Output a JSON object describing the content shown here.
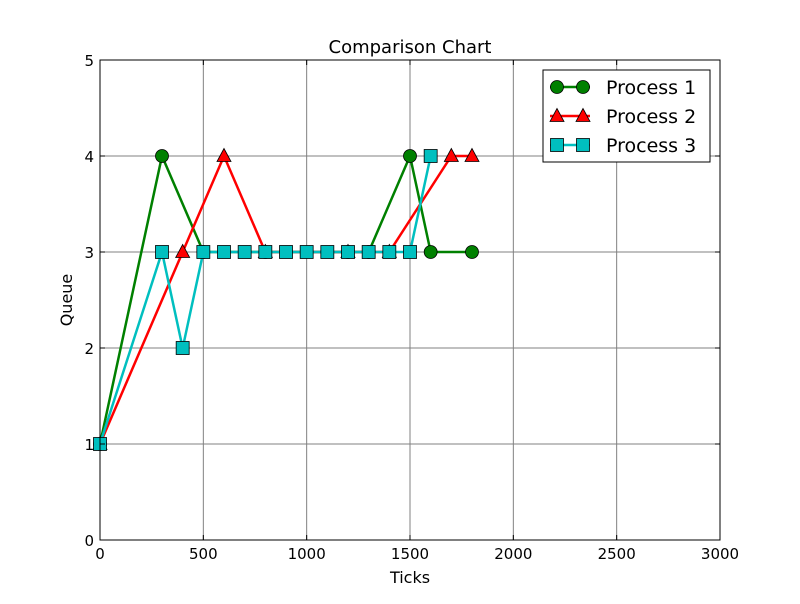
{
  "chart_data": {
    "type": "line",
    "title": "Comparison Chart",
    "xlabel": "Ticks",
    "ylabel": "Queue",
    "xlim": [
      0,
      3000
    ],
    "ylim": [
      0,
      5
    ],
    "xticks": [
      0,
      500,
      1000,
      1500,
      2000,
      2500,
      3000
    ],
    "xtick_labels": [
      "0",
      "500",
      "1000",
      "1500",
      "2000",
      "2500",
      "3000"
    ],
    "yticks": [
      0,
      1,
      2,
      3,
      4,
      5
    ],
    "ytick_labels": [
      "0",
      "1",
      "2",
      "3",
      "4",
      "5"
    ],
    "grid": true,
    "legend_position": "top-right",
    "series": [
      {
        "name": "Process 1",
        "color": "#008000",
        "marker": "circle",
        "x": [
          0,
          300,
          500,
          800,
          1200,
          1300,
          1500,
          1600,
          1800
        ],
        "y": [
          1,
          4,
          3,
          3,
          3,
          3,
          4,
          3,
          3
        ]
      },
      {
        "name": "Process 2",
        "color": "#ff0000",
        "marker": "triangle",
        "x": [
          0,
          400,
          600,
          800,
          1200,
          1400,
          1700,
          1800
        ],
        "y": [
          1,
          3,
          4,
          3,
          3,
          3,
          4,
          4
        ]
      },
      {
        "name": "Process 3",
        "color": "#00bfbf",
        "marker": "square",
        "x": [
          0,
          300,
          400,
          500,
          600,
          700,
          800,
          900,
          1000,
          1100,
          1200,
          1300,
          1400,
          1500,
          1600
        ],
        "y": [
          1,
          3,
          2,
          3,
          3,
          3,
          3,
          3,
          3,
          3,
          3,
          3,
          3,
          3,
          4
        ]
      }
    ]
  }
}
